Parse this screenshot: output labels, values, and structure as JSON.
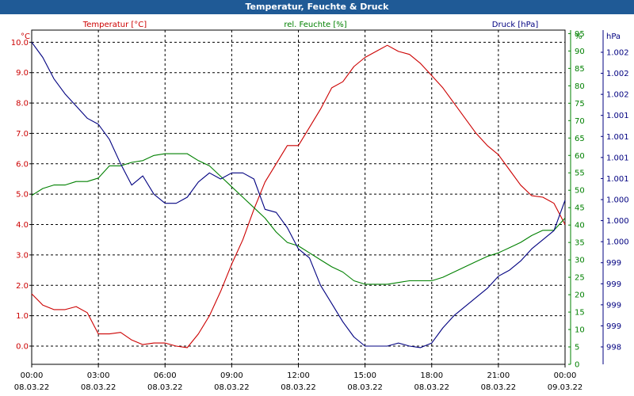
{
  "chart_data": {
    "type": "line",
    "title": "Temperatur, Feuchte & Druck",
    "x_ticks": [
      {
        "time": "00:00",
        "date": "08.03.22"
      },
      {
        "time": "03:00",
        "date": "08.03.22"
      },
      {
        "time": "06:00",
        "date": "08.03.22"
      },
      {
        "time": "09:00",
        "date": "08.03.22"
      },
      {
        "time": "12:00",
        "date": "08.03.22"
      },
      {
        "time": "15:00",
        "date": "08.03.22"
      },
      {
        "time": "18:00",
        "date": "08.03.22"
      },
      {
        "time": "21:00",
        "date": "08.03.22"
      },
      {
        "time": "00:00",
        "date": "09.03.22"
      }
    ],
    "xlim": [
      "08.03.22 00:00",
      "09.03.22 00:00"
    ],
    "axes": {
      "temperature": {
        "unit": "°C",
        "ylim": [
          -0.6,
          10.4
        ],
        "ticks": [
          "0.0",
          "1.0",
          "2.0",
          "3.0",
          "4.0",
          "5.0",
          "6.0",
          "7.0",
          "8.0",
          "9.0",
          "10.0"
        ],
        "color": "#cc0000"
      },
      "humidity": {
        "unit": "%",
        "ylim": [
          0,
          96
        ],
        "ticks": [
          "0",
          "5",
          "10",
          "15",
          "20",
          "25",
          "30",
          "35",
          "40",
          "45",
          "50",
          "55",
          "60",
          "65",
          "70",
          "75",
          "80",
          "85",
          "90",
          "95"
        ],
        "color": "#008000"
      },
      "pressure": {
        "unit": "hPa",
        "tick_labels": [
          "998",
          "999",
          "999",
          "999",
          "999",
          "1.000",
          "1.000",
          "1.000",
          "1.001",
          "1.001",
          "1.001",
          "1.001",
          "1.002",
          "1.002",
          "1.002"
        ],
        "color": "#000080"
      }
    },
    "series": [
      {
        "name": "Temperatur [°C]",
        "color": "#cc0000",
        "axis": "temperature",
        "points": [
          [
            "00:00",
            1.72
          ],
          [
            "00:30",
            1.35
          ],
          [
            "01:00",
            1.2
          ],
          [
            "01:30",
            1.2
          ],
          [
            "02:00",
            1.3
          ],
          [
            "02:30",
            1.1
          ],
          [
            "03:00",
            0.4
          ],
          [
            "03:30",
            0.4
          ],
          [
            "04:00",
            0.45
          ],
          [
            "04:30",
            0.2
          ],
          [
            "05:00",
            0.05
          ],
          [
            "05:30",
            0.1
          ],
          [
            "06:00",
            0.1
          ],
          [
            "06:30",
            0.0
          ],
          [
            "07:00",
            -0.05
          ],
          [
            "07:30",
            0.4
          ],
          [
            "08:00",
            1.0
          ],
          [
            "08:30",
            1.8
          ],
          [
            "09:00",
            2.7
          ],
          [
            "09:30",
            3.5
          ],
          [
            "10:00",
            4.5
          ],
          [
            "10:30",
            5.4
          ],
          [
            "11:00",
            6.0
          ],
          [
            "11:30",
            6.6
          ],
          [
            "12:00",
            6.6
          ],
          [
            "12:30",
            7.2
          ],
          [
            "13:00",
            7.8
          ],
          [
            "13:30",
            8.5
          ],
          [
            "14:00",
            8.7
          ],
          [
            "14:30",
            9.2
          ],
          [
            "15:00",
            9.5
          ],
          [
            "15:30",
            9.7
          ],
          [
            "16:00",
            9.9
          ],
          [
            "16:30",
            9.7
          ],
          [
            "17:00",
            9.6
          ],
          [
            "17:30",
            9.3
          ],
          [
            "18:00",
            8.9
          ],
          [
            "18:30",
            8.5
          ],
          [
            "19:00",
            8.0
          ],
          [
            "19:30",
            7.5
          ],
          [
            "20:00",
            7.0
          ],
          [
            "20:30",
            6.6
          ],
          [
            "21:00",
            6.3
          ],
          [
            "21:30",
            5.8
          ],
          [
            "22:00",
            5.3
          ],
          [
            "22:30",
            4.95
          ],
          [
            "23:00",
            4.9
          ],
          [
            "23:30",
            4.7
          ],
          [
            "00:00",
            4.0
          ]
        ]
      },
      {
        "name": "rel. Feuchte [%]",
        "color": "#008000",
        "axis": "humidity",
        "points": [
          [
            "00:00",
            48.5
          ],
          [
            "00:30",
            50.5
          ],
          [
            "01:00",
            51.5
          ],
          [
            "01:30",
            51.5
          ],
          [
            "02:00",
            52.5
          ],
          [
            "02:30",
            52.5
          ],
          [
            "03:00",
            53.5
          ],
          [
            "03:30",
            57
          ],
          [
            "04:00",
            57
          ],
          [
            "04:30",
            58
          ],
          [
            "05:00",
            58.5
          ],
          [
            "05:30",
            60
          ],
          [
            "06:00",
            60.5
          ],
          [
            "06:30",
            60.5
          ],
          [
            "07:00",
            60.5
          ],
          [
            "07:30",
            58.5
          ],
          [
            "08:00",
            57
          ],
          [
            "08:30",
            54
          ],
          [
            "09:00",
            51
          ],
          [
            "09:30",
            48
          ],
          [
            "10:00",
            45
          ],
          [
            "10:30",
            42
          ],
          [
            "11:00",
            38
          ],
          [
            "11:30",
            35
          ],
          [
            "12:00",
            34
          ],
          [
            "12:30",
            32
          ],
          [
            "13:00",
            30
          ],
          [
            "13:30",
            28
          ],
          [
            "14:00",
            26.5
          ],
          [
            "14:30",
            24
          ],
          [
            "15:00",
            23
          ],
          [
            "15:30",
            23
          ],
          [
            "16:00",
            23
          ],
          [
            "16:30",
            23.5
          ],
          [
            "17:00",
            24
          ],
          [
            "17:30",
            24
          ],
          [
            "18:00",
            24
          ],
          [
            "18:30",
            25
          ],
          [
            "19:00",
            26.5
          ],
          [
            "19:30",
            28
          ],
          [
            "20:00",
            29.5
          ],
          [
            "20:30",
            31
          ],
          [
            "21:00",
            32
          ],
          [
            "21:30",
            33.5
          ],
          [
            "22:00",
            35
          ],
          [
            "22:30",
            37
          ],
          [
            "23:00",
            38.5
          ],
          [
            "23:30",
            38.5
          ],
          [
            "00:00",
            42
          ]
        ]
      },
      {
        "name": "Druck [hPa]",
        "color": "#000080",
        "axis": "pressure",
        "points": [
          [
            "00:00",
            10.0
          ],
          [
            "00:30",
            9.5
          ],
          [
            "01:00",
            8.8
          ],
          [
            "01:30",
            8.3
          ],
          [
            "02:00",
            7.9
          ],
          [
            "02:30",
            7.5
          ],
          [
            "03:00",
            7.3
          ],
          [
            "03:30",
            6.8
          ],
          [
            "04:00",
            6.0
          ],
          [
            "04:30",
            5.3
          ],
          [
            "05:00",
            5.6
          ],
          [
            "05:30",
            5.0
          ],
          [
            "06:00",
            4.7
          ],
          [
            "06:30",
            4.7
          ],
          [
            "07:00",
            4.9
          ],
          [
            "07:30",
            5.4
          ],
          [
            "08:00",
            5.7
          ],
          [
            "08:30",
            5.5
          ],
          [
            "09:00",
            5.7
          ],
          [
            "09:30",
            5.7
          ],
          [
            "10:00",
            5.5
          ],
          [
            "10:30",
            4.5
          ],
          [
            "11:00",
            4.4
          ],
          [
            "11:30",
            3.9
          ],
          [
            "12:00",
            3.2
          ],
          [
            "12:30",
            2.9
          ],
          [
            "13:00",
            2.0
          ],
          [
            "13:30",
            1.4
          ],
          [
            "14:00",
            0.8
          ],
          [
            "14:30",
            0.3
          ],
          [
            "15:00",
            0.0
          ],
          [
            "15:30",
            0.0
          ],
          [
            "16:00",
            0.0
          ],
          [
            "16:30",
            0.1
          ],
          [
            "17:00",
            0.0
          ],
          [
            "17:30",
            -0.05
          ],
          [
            "18:00",
            0.1
          ],
          [
            "18:30",
            0.6
          ],
          [
            "19:00",
            1.0
          ],
          [
            "19:30",
            1.3
          ],
          [
            "20:00",
            1.6
          ],
          [
            "20:30",
            1.9
          ],
          [
            "21:00",
            2.3
          ],
          [
            "21:30",
            2.5
          ],
          [
            "22:00",
            2.8
          ],
          [
            "22:30",
            3.2
          ],
          [
            "23:00",
            3.5
          ],
          [
            "23:30",
            3.8
          ],
          [
            "00:00",
            4.8
          ]
        ]
      }
    ],
    "grid": true,
    "legend_placement": "top"
  }
}
